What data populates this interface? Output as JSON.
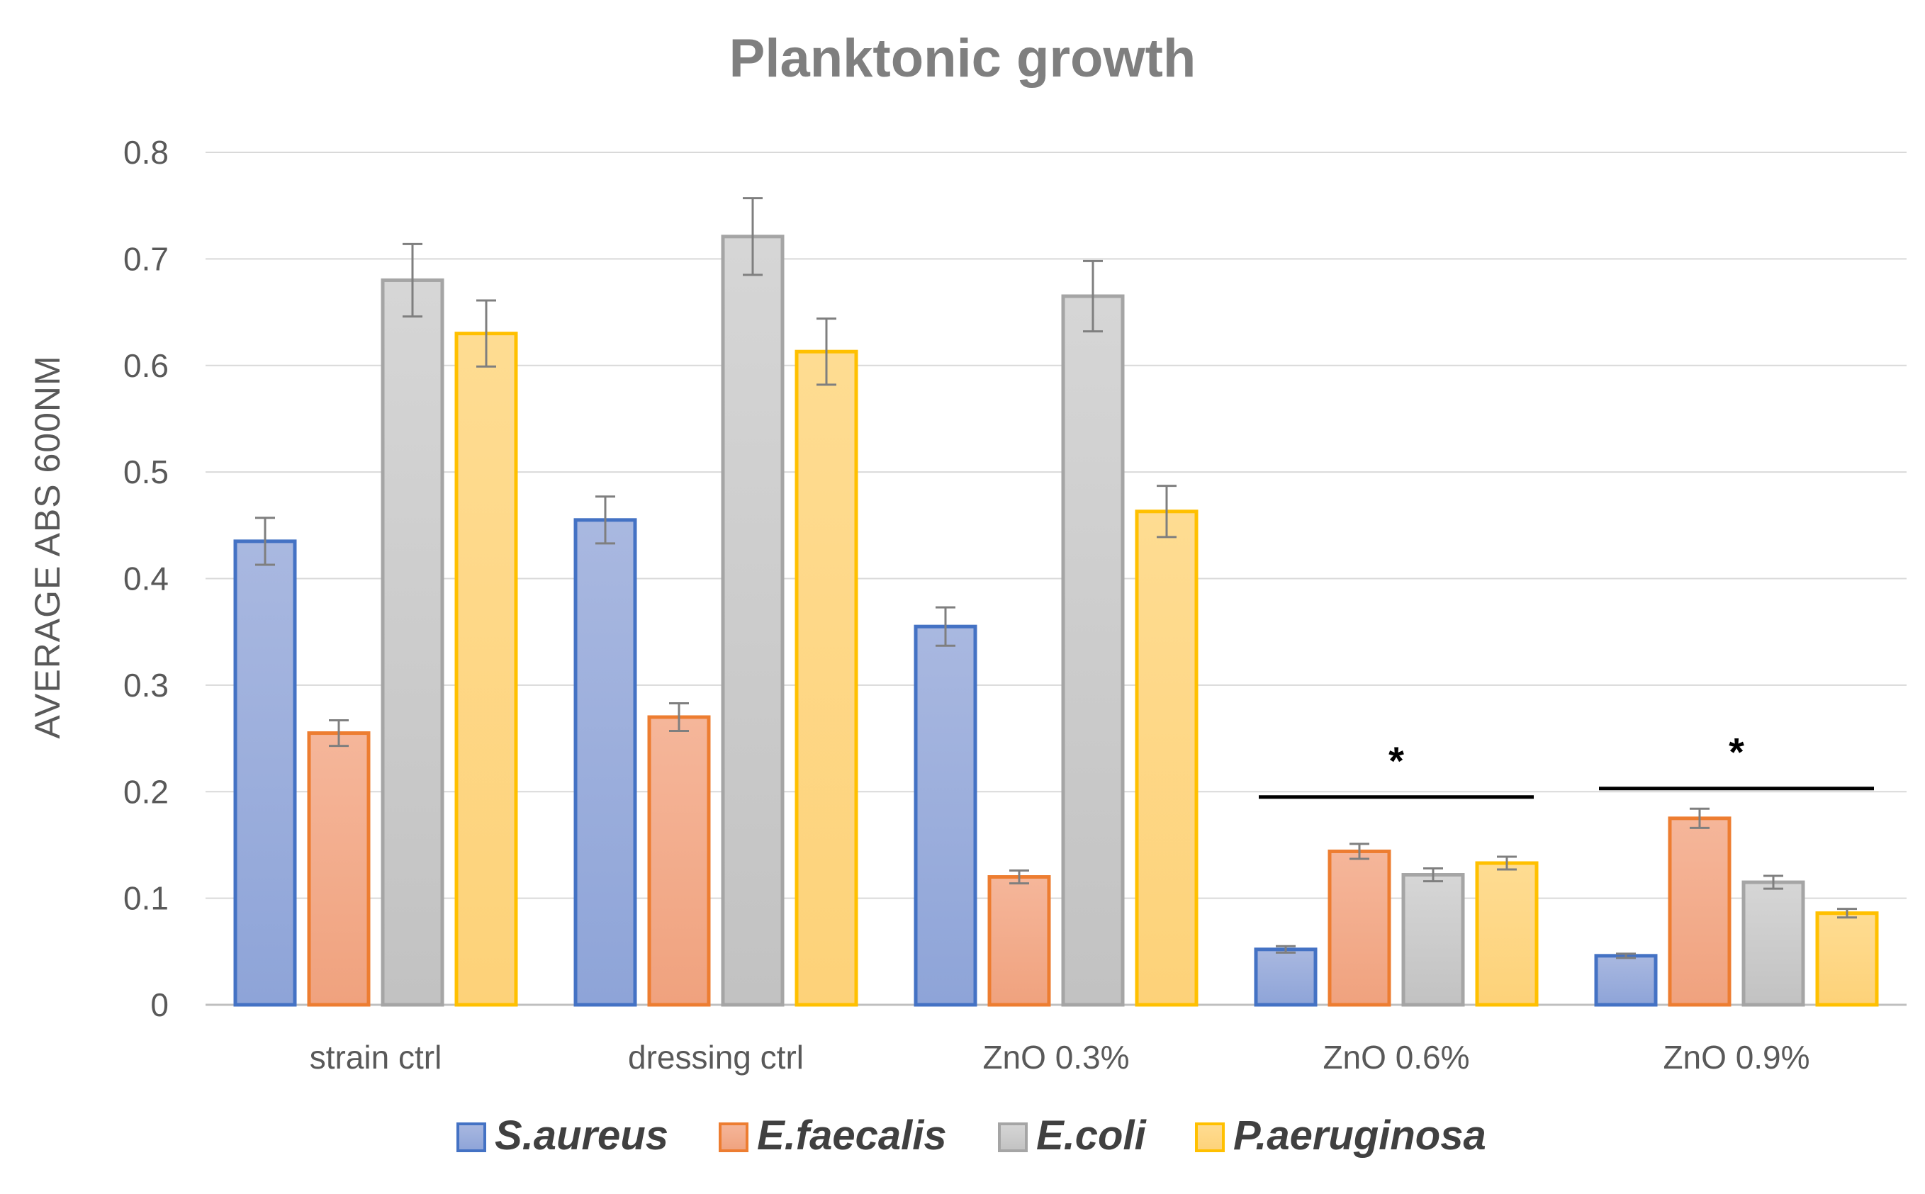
{
  "chart_data": {
    "type": "bar",
    "title": "Planktonic growth",
    "xlabel": "",
    "ylabel": "AVERAGE ABS 600NM",
    "ylim": [
      0,
      0.8
    ],
    "yticks": [
      "0",
      "0.1",
      "0.2",
      "0.3",
      "0.4",
      "0.5",
      "0.6",
      "0.7",
      "0.8"
    ],
    "grid": true,
    "legend_position": "bottom",
    "categories": [
      "strain ctrl",
      "dressing ctrl",
      "ZnO 0.3%",
      "ZnO 0.6%",
      "ZnO 0.9%"
    ],
    "series": [
      {
        "name": "S.aureus",
        "values": [
          0.435,
          0.455,
          0.355,
          0.052,
          0.046
        ],
        "errors": [
          0.022,
          0.022,
          0.018,
          0.003,
          0.002
        ],
        "color": "#4472c4",
        "fill_top": "#a9b8e0",
        "fill_bottom": "#8ea4d8"
      },
      {
        "name": "E.faecalis",
        "values": [
          0.255,
          0.27,
          0.12,
          0.144,
          0.175
        ],
        "errors": [
          0.012,
          0.013,
          0.006,
          0.007,
          0.009
        ],
        "color": "#ed7d31",
        "fill_top": "#f5b69a",
        "fill_bottom": "#f0a27e"
      },
      {
        "name": "E.coli",
        "values": [
          0.68,
          0.721,
          0.665,
          0.122,
          0.115
        ],
        "errors": [
          0.034,
          0.036,
          0.033,
          0.006,
          0.006
        ],
        "color": "#a5a5a5",
        "fill_top": "#d6d6d6",
        "fill_bottom": "#c2c2c2"
      },
      {
        "name": "P.aeruginosa",
        "values": [
          0.63,
          0.613,
          0.463,
          0.133,
          0.086
        ],
        "errors": [
          0.031,
          0.031,
          0.024,
          0.006,
          0.004
        ],
        "color": "#ffc000",
        "fill_top": "#fedc92",
        "fill_bottom": "#fdd279"
      }
    ],
    "annotations": [
      {
        "text": "*",
        "category_index": 3,
        "bracket_y": 0.195
      },
      {
        "text": "*",
        "category_index": 4,
        "bracket_y": 0.203
      }
    ]
  }
}
